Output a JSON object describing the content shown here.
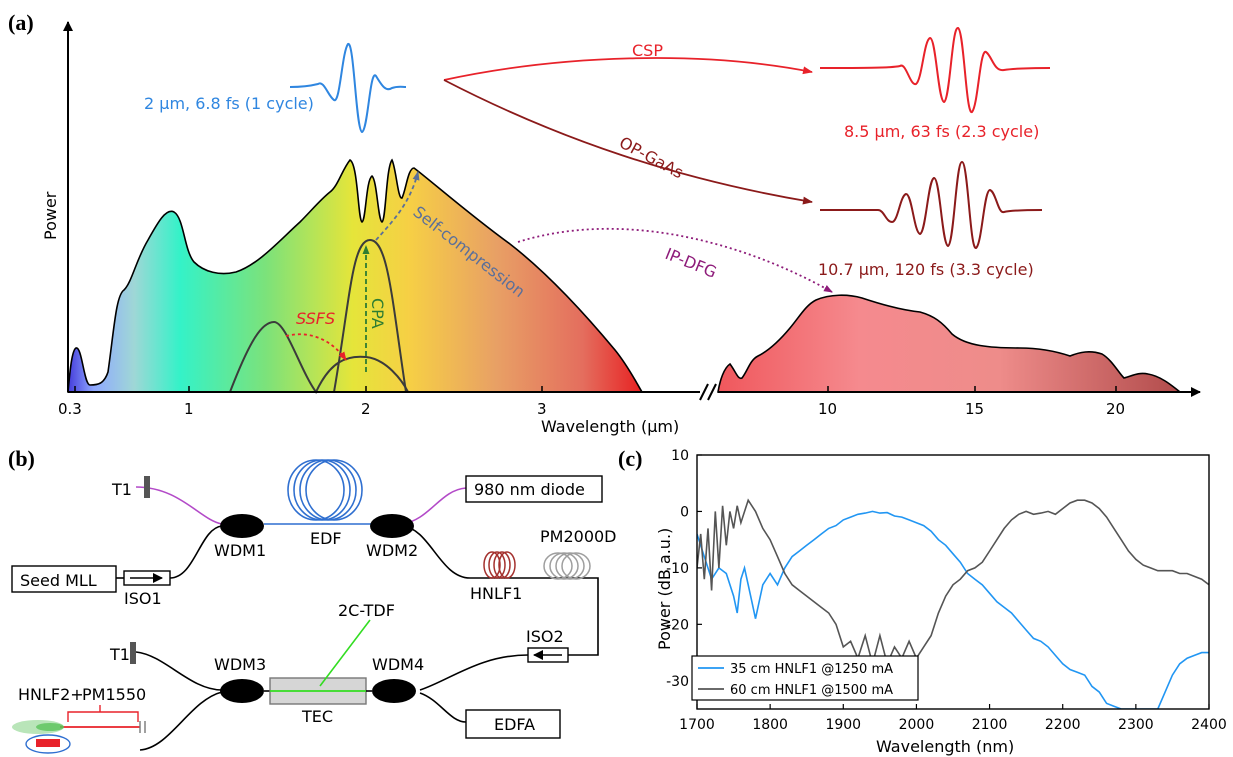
{
  "panel_a": {
    "label": "(a)",
    "y_axis_title": "Power",
    "x_axis_title": "Wavelength (μm)",
    "x_ticks": [
      "0.3",
      "1",
      "2",
      "3",
      "10",
      "15",
      "20"
    ],
    "annotations": {
      "seed_pulse": "2 μm, 6.8 fs (1 cycle)",
      "csp": "CSP",
      "csp_pulse": "8.5 μm, 63 fs (2.3 cycle)",
      "op_gaas": "OP-GaAs",
      "op_pulse": "10.7 μm, 120 fs (3.3 cycle)",
      "ip_dfg": "IP-DFG",
      "self_compression": "Self-compression",
      "ssfs": "SSFS",
      "cpa": "CPA"
    },
    "colors": {
      "blue": "#2f86e0",
      "red": "#e8222a",
      "darkred": "#8b1a1a",
      "purple": "#8e1c7a",
      "green": "#2e7d32",
      "slate": "#5a6f9a"
    }
  },
  "panel_b": {
    "label": "(b)",
    "components": {
      "t1_top": "T1",
      "diode": "980 nm diode",
      "wdm1": "WDM1",
      "edf": "EDF",
      "wdm2": "WDM2",
      "seed": "Seed MLL",
      "iso1": "ISO1",
      "hnlf1": "HNLF1",
      "pm2000d": "PM2000D",
      "iso2": "ISO2",
      "tdf": "2C-TDF",
      "t1_bottom": "T1",
      "wdm3": "WDM3",
      "wdm4": "WDM4",
      "tec": "TEC",
      "hnlf2": "HNLF2+",
      "pm1550": "PM1550",
      "edfa": "EDFA"
    },
    "colors": {
      "edf": "#2f6fd0",
      "hnlf1": "#a4312e",
      "pm2000d": "#9e9e9e",
      "tdf": "#33dd22",
      "hnlf2": "#e8222a",
      "pump": "#b34ac8"
    }
  },
  "panel_c": {
    "label": "(c)",
    "chart_data": {
      "type": "line",
      "xlabel": "Wavelength (nm)",
      "ylabel": "Power (dB a.u.)",
      "xlim": [
        1700,
        2400
      ],
      "ylim": [
        -35,
        10
      ],
      "x_ticks": [
        "1700",
        "1800",
        "1900",
        "2000",
        "2100",
        "2200",
        "2300",
        "2400"
      ],
      "y_ticks": [
        "10",
        "0",
        "-10",
        "-20",
        "-30"
      ],
      "legend_position": "bottom-left",
      "series": [
        {
          "name": "35 cm HNLF1 @1250 mA",
          "color": "#2196f3",
          "x": [
            1700,
            1710,
            1720,
            1730,
            1740,
            1750,
            1755,
            1760,
            1765,
            1770,
            1775,
            1780,
            1790,
            1800,
            1810,
            1820,
            1830,
            1840,
            1850,
            1860,
            1870,
            1880,
            1890,
            1900,
            1910,
            1920,
            1930,
            1940,
            1950,
            1960,
            1970,
            1980,
            1990,
            2000,
            2010,
            2020,
            2030,
            2040,
            2050,
            2060,
            2070,
            2080,
            2090,
            2100,
            2110,
            2120,
            2130,
            2140,
            2150,
            2160,
            2170,
            2180,
            2190,
            2200,
            2210,
            2220,
            2230,
            2240,
            2250,
            2255,
            2260,
            2270,
            2280,
            2290,
            2300,
            2310,
            2320,
            2330,
            2340,
            2350,
            2360,
            2370,
            2380,
            2390,
            2400
          ],
          "y": [
            -4,
            -8,
            -12,
            -10,
            -11,
            -15,
            -18,
            -12,
            -10,
            -13,
            -16,
            -19,
            -13,
            -11,
            -13,
            -10,
            -8,
            -7,
            -6,
            -5,
            -4,
            -3,
            -2.5,
            -1.5,
            -1,
            -0.5,
            -0.3,
            0,
            -0.3,
            -0.2,
            -0.8,
            -1,
            -1.5,
            -2,
            -2.5,
            -3.5,
            -5,
            -6,
            -7.5,
            -9,
            -11,
            -12,
            -13,
            -14.5,
            -16,
            -17,
            -18,
            -19.5,
            -21,
            -22.5,
            -23,
            -24,
            -25.5,
            -27,
            -28,
            -28.5,
            -29,
            -31,
            -32,
            -33,
            -34,
            -34.5,
            -35,
            -35,
            -35,
            -35,
            -35,
            -35,
            -32,
            -29,
            -27,
            -26,
            -25.5,
            -25,
            -25
          ]
        },
        {
          "name": "60 cm HNLF1 @1500 mA",
          "color": "#555555",
          "x": [
            1700,
            1705,
            1710,
            1715,
            1720,
            1725,
            1730,
            1735,
            1740,
            1745,
            1750,
            1755,
            1760,
            1770,
            1780,
            1790,
            1800,
            1810,
            1820,
            1830,
            1840,
            1850,
            1860,
            1870,
            1880,
            1890,
            1900,
            1910,
            1920,
            1930,
            1940,
            1950,
            1960,
            1970,
            1980,
            1990,
            2000,
            2010,
            2020,
            2030,
            2040,
            2050,
            2060,
            2070,
            2080,
            2090,
            2100,
            2110,
            2120,
            2130,
            2140,
            2150,
            2160,
            2170,
            2180,
            2190,
            2200,
            2210,
            2220,
            2230,
            2240,
            2250,
            2260,
            2270,
            2280,
            2290,
            2300,
            2310,
            2320,
            2330,
            2340,
            2350,
            2360,
            2370,
            2380,
            2390,
            2400
          ],
          "y": [
            -10,
            -4,
            -12,
            -3,
            -14,
            0,
            -10,
            1,
            -6,
            0,
            -3,
            1,
            -2,
            2,
            0,
            -3,
            -5,
            -8,
            -11,
            -13,
            -14,
            -15,
            -16,
            -17,
            -18,
            -20,
            -24,
            -23,
            -26,
            -22,
            -27,
            -22,
            -27,
            -24,
            -26,
            -23,
            -26,
            -24,
            -22,
            -18,
            -15,
            -13,
            -12,
            -10.5,
            -10,
            -9,
            -7,
            -5,
            -3,
            -1.5,
            -0.5,
            0,
            -0.5,
            -0.3,
            0,
            -0.5,
            0.5,
            1.5,
            2,
            2,
            1.5,
            0.5,
            -1,
            -3,
            -5,
            -7,
            -8.5,
            -9.5,
            -10,
            -10.5,
            -10.5,
            -10.5,
            -11,
            -11,
            -11.5,
            -12,
            -13
          ]
        }
      ]
    }
  }
}
